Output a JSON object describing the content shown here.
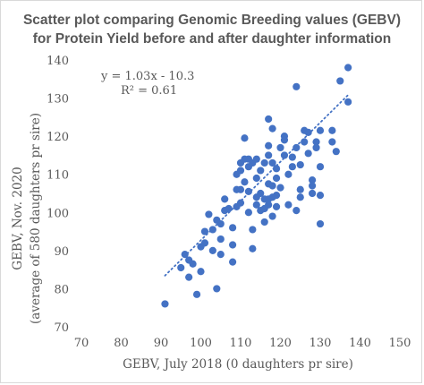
{
  "chart_data": {
    "type": "scatter",
    "title_line1": "Scatter plot comparing Genomic Breeding values (GEBV)",
    "title_line2": "for Protein Yield before and after daughter information",
    "xlabel": "GEBV, July 2018 (0 daughters pr sire)",
    "ylabel_line1": "GEBV, Nov. 2020",
    "ylabel_line2": "(average of 580 daughters pr sire)",
    "xlim": [
      70,
      150
    ],
    "ylim": [
      70,
      140
    ],
    "xticks": [
      "70",
      "80",
      "90",
      "100",
      "110",
      "120",
      "130",
      "140",
      "150"
    ],
    "yticks": [
      "70",
      "80",
      "90",
      "100",
      "110",
      "120",
      "130",
      "140"
    ],
    "grid": false,
    "marker_color": "#4472c4",
    "trendline": {
      "type": "linear",
      "slope": 1.03,
      "intercept": -10.3,
      "x_range": [
        91,
        137
      ],
      "style": "dotted",
      "color": "#4472c4"
    },
    "equation_text": "y = 1.03x - 10.3",
    "r2_text": "R² = 0.61",
    "points": [
      [
        91,
        76
      ],
      [
        95,
        85.5
      ],
      [
        96,
        89
      ],
      [
        97,
        83
      ],
      [
        97,
        87.5
      ],
      [
        98,
        86.5
      ],
      [
        99,
        78.5
      ],
      [
        100,
        91
      ],
      [
        100,
        84.5
      ],
      [
        101,
        95
      ],
      [
        101,
        92
      ],
      [
        102,
        99.5
      ],
      [
        103,
        90
      ],
      [
        103,
        95.5
      ],
      [
        104,
        80
      ],
      [
        104,
        98
      ],
      [
        105,
        97
      ],
      [
        105,
        93
      ],
      [
        105,
        89
      ],
      [
        106,
        100.5
      ],
      [
        106,
        103.5
      ],
      [
        107,
        101
      ],
      [
        108,
        96
      ],
      [
        108,
        91.5
      ],
      [
        108,
        87
      ],
      [
        109,
        101.5
      ],
      [
        109,
        106
      ],
      [
        109,
        110
      ],
      [
        110,
        106
      ],
      [
        110,
        113
      ],
      [
        110,
        111
      ],
      [
        110,
        102.5
      ],
      [
        111,
        119.5
      ],
      [
        111,
        114
      ],
      [
        111,
        108
      ],
      [
        112,
        114
      ],
      [
        112,
        112
      ],
      [
        112,
        105.5
      ],
      [
        112,
        100
      ],
      [
        113,
        113
      ],
      [
        113,
        95.5
      ],
      [
        113,
        90.5
      ],
      [
        114,
        114
      ],
      [
        114,
        109
      ],
      [
        114,
        104
      ],
      [
        114,
        102
      ],
      [
        115,
        111
      ],
      [
        115,
        105
      ],
      [
        115,
        100.5
      ],
      [
        116,
        113
      ],
      [
        116,
        103.5
      ],
      [
        116,
        101
      ],
      [
        116,
        97.5
      ],
      [
        117,
        124.5
      ],
      [
        117,
        117.5
      ],
      [
        117,
        115
      ],
      [
        117,
        107.5
      ],
      [
        117,
        103.5
      ],
      [
        117,
        102
      ],
      [
        118,
        122
      ],
      [
        118,
        113
      ],
      [
        118,
        107
      ],
      [
        118,
        104
      ],
      [
        118,
        99
      ],
      [
        119,
        111.5
      ],
      [
        119,
        109
      ],
      [
        119,
        104.5
      ],
      [
        119,
        101.5
      ],
      [
        120,
        117
      ],
      [
        120,
        106.5
      ],
      [
        121,
        120
      ],
      [
        121,
        119
      ],
      [
        121,
        115
      ],
      [
        122,
        110
      ],
      [
        122,
        102
      ],
      [
        123,
        114.5
      ],
      [
        123,
        112
      ],
      [
        124,
        133
      ],
      [
        124,
        117
      ],
      [
        124,
        100.5
      ],
      [
        125,
        112.5
      ],
      [
        125,
        106
      ],
      [
        125,
        104
      ],
      [
        126,
        121.5
      ],
      [
        126,
        118.5
      ],
      [
        127,
        121
      ],
      [
        127,
        115.5
      ],
      [
        128,
        107
      ],
      [
        128,
        105
      ],
      [
        128,
        108.5
      ],
      [
        129,
        118.5
      ],
      [
        129,
        117
      ],
      [
        130,
        121.5
      ],
      [
        130,
        112
      ],
      [
        130,
        104.5
      ],
      [
        130,
        97
      ],
      [
        133,
        121.5
      ],
      [
        133,
        118.5
      ],
      [
        134,
        116
      ],
      [
        135,
        134.5
      ],
      [
        137,
        138
      ],
      [
        137,
        129
      ]
    ]
  }
}
